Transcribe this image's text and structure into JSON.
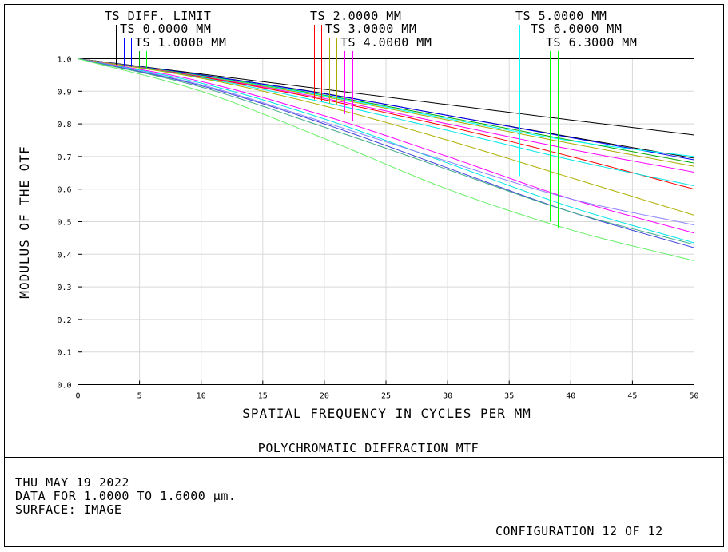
{
  "header": {
    "legend_labels": [
      "TS DIFF. LIMIT",
      "TS 0.0000 MM",
      "TS 1.0000 MM",
      "TS 2.0000 MM",
      "TS 3.0000 MM",
      "TS 4.0000 MM",
      "TS 5.0000 MM",
      "TS 6.0000 MM",
      "TS 6.3000 MM"
    ]
  },
  "title_bar": {
    "title": "POLYCHROMATIC DIFFRACTION MTF"
  },
  "info_box": {
    "date": "THU MAY 19 2022",
    "wavelength": "DATA FOR 1.0000 TO 1.6000 µm.",
    "surface": "SURFACE: IMAGE",
    "configuration": "CONFIGURATION 12 OF 12"
  },
  "chart_data": {
    "type": "line",
    "title": "",
    "xlabel": "SPATIAL FREQUENCY IN CYCLES PER MM",
    "ylabel": "MODULUS OF THE OTF",
    "xlim": [
      0,
      50
    ],
    "ylim": [
      0,
      1
    ],
    "x_ticks": [
      "0",
      "5",
      "10",
      "15",
      "20",
      "25",
      "30",
      "35",
      "40",
      "45",
      "50"
    ],
    "y_ticks": [
      "0.0",
      "0.1",
      "0.2",
      "0.3",
      "0.4",
      "0.5",
      "0.6",
      "0.7",
      "0.8",
      "0.9",
      "1.0"
    ],
    "grid": true,
    "x": [
      0,
      10,
      20,
      30,
      40,
      50
    ],
    "series": [
      {
        "name": "TS DIFF. LIMIT",
        "color": "#000000",
        "values": [
          1.0,
          0.953,
          0.906,
          0.859,
          0.812,
          0.766
        ]
      },
      {
        "name": "TS 0.0000 MM",
        "color": "#000000",
        "values": [
          1.0,
          0.95,
          0.893,
          0.826,
          0.76,
          0.695
        ]
      },
      {
        "name": "TS 0.0000 MM",
        "color": "#0000ff",
        "values": [
          1.0,
          0.95,
          0.892,
          0.826,
          0.758,
          0.69
        ]
      },
      {
        "name": "TS 1.0000 MM",
        "color": "#00aa00",
        "values": [
          1.0,
          0.948,
          0.888,
          0.82,
          0.75,
          0.68
        ]
      },
      {
        "name": "TS 1.0000 MM",
        "color": "#00ffff",
        "values": [
          1.0,
          0.947,
          0.886,
          0.816,
          0.748,
          0.7
        ]
      },
      {
        "name": "TS 2.0000 MM",
        "color": "#aaaa00",
        "values": [
          1.0,
          0.946,
          0.883,
          0.812,
          0.74,
          0.67
        ]
      },
      {
        "name": "TS 2.0000 MM",
        "color": "#ff00ff",
        "values": [
          1.0,
          0.945,
          0.878,
          0.8,
          0.722,
          0.652
        ]
      },
      {
        "name": "TS 3.0000 MM",
        "color": "#ff0000",
        "values": [
          1.0,
          0.944,
          0.874,
          0.792,
          0.7,
          0.6
        ]
      },
      {
        "name": "TS 3.0000 MM",
        "color": "#00e5e5",
        "values": [
          1.0,
          0.942,
          0.866,
          0.78,
          0.69,
          0.61
        ]
      },
      {
        "name": "TS 4.0000 MM",
        "color": "#b0b000",
        "values": [
          1.0,
          0.94,
          0.855,
          0.75,
          0.635,
          0.52
        ]
      },
      {
        "name": "TS 4.0000 MM",
        "color": "#ff00ff",
        "values": [
          1.0,
          0.93,
          0.825,
          0.7,
          0.57,
          0.465
        ]
      },
      {
        "name": "TS 5.0000 MM",
        "color": "#00e5e5",
        "values": [
          1.0,
          0.925,
          0.815,
          0.68,
          0.545,
          0.435
        ]
      },
      {
        "name": "TS 5.0000 MM",
        "color": "#8a80ff",
        "values": [
          1.0,
          0.92,
          0.805,
          0.685,
          0.57,
          0.49
        ]
      },
      {
        "name": "TS 6.0000 MM",
        "color": "#4444dd",
        "values": [
          1.0,
          0.917,
          0.8,
          0.665,
          0.53,
          0.42
        ]
      },
      {
        "name": "TS 6.0000 MM",
        "color": "#44aa88",
        "values": [
          1.0,
          0.913,
          0.79,
          0.66,
          0.53,
          0.43
        ]
      },
      {
        "name": "TS 6.3000 MM",
        "color": "#66ee66",
        "values": [
          1.0,
          0.9,
          0.755,
          0.6,
          0.475,
          0.38
        ]
      }
    ]
  }
}
